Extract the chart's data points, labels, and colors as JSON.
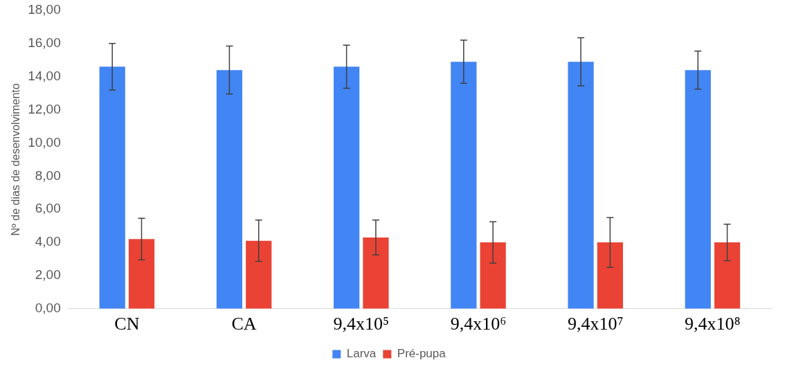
{
  "chart_data": {
    "type": "bar",
    "ylabel": "Nº de dias de desenvolvimento",
    "categories": [
      "CN",
      "CA",
      "9,4x10⁵",
      "9,4x10⁶",
      "9,4x10⁷",
      "9,4x10⁸"
    ],
    "series": [
      {
        "name": "Larva",
        "color": "#4285f4",
        "values": [
          14.6,
          14.4,
          14.6,
          14.9,
          14.9,
          14.4
        ],
        "errors": [
          1.4,
          1.45,
          1.3,
          1.3,
          1.45,
          1.15
        ]
      },
      {
        "name": "Pré-pupa",
        "color": "#ea4335",
        "values": [
          4.2,
          4.1,
          4.3,
          4.0,
          4.0,
          4.0
        ],
        "errors": [
          1.25,
          1.25,
          1.05,
          1.25,
          1.5,
          1.1
        ]
      }
    ],
    "ylim": [
      0,
      18
    ],
    "yticks": [
      {
        "value": 0,
        "label": "0,00"
      },
      {
        "value": 2,
        "label": "2,00"
      },
      {
        "value": 4,
        "label": "4,00"
      },
      {
        "value": 6,
        "label": "6,00"
      },
      {
        "value": 8,
        "label": "8,00"
      },
      {
        "value": 10,
        "label": "10,00"
      },
      {
        "value": 12,
        "label": "12,00"
      },
      {
        "value": 14,
        "label": "14,00"
      },
      {
        "value": 16,
        "label": "16,00"
      },
      {
        "value": 18,
        "label": "18,00"
      }
    ],
    "grid": false,
    "legend": "bottom"
  }
}
